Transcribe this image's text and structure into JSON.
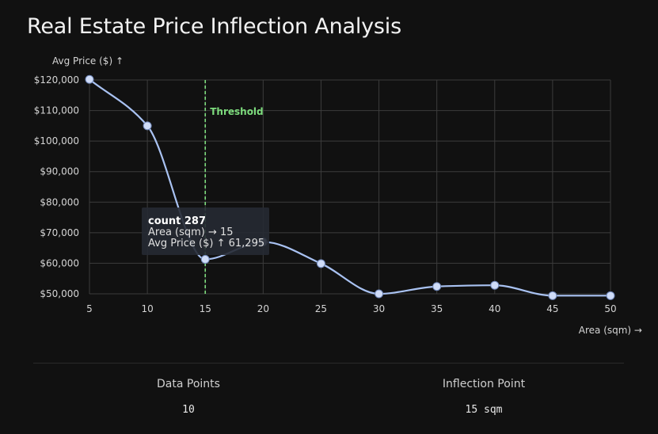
{
  "title": "Real Estate Price Inflection Analysis",
  "chart_data": {
    "type": "line",
    "title": "Real Estate Price Inflection Analysis",
    "xlabel": "Area (sqm) →",
    "ylabel": "Avg Price ($) ↑",
    "x": [
      5,
      10,
      15,
      20,
      25,
      30,
      35,
      40,
      45,
      50
    ],
    "xticks": [
      "5",
      "10",
      "15",
      "20",
      "25",
      "30",
      "35",
      "40",
      "45",
      "50"
    ],
    "yticks": [
      "$50,000",
      "$60,000",
      "$70,000",
      "$80,000",
      "$90,000",
      "$100,000",
      "$110,000",
      "$120,000"
    ],
    "ytick_values": [
      50000,
      60000,
      70000,
      80000,
      90000,
      100000,
      110000,
      120000
    ],
    "series": [
      {
        "values": [
          120200,
          105000,
          61295,
          67000,
          59900,
          50000,
          52400,
          52800,
          49400,
          49400
        ]
      }
    ],
    "xlim": [
      5,
      50
    ],
    "ylim": [
      50000,
      120000
    ],
    "grid": true,
    "line_color": "#a9c2f2",
    "marker_fill": "#cfdcf8",
    "threshold": {
      "x": 15,
      "label": "Threshold",
      "color": "#7ddc7d"
    },
    "tooltip": {
      "title": "count 287",
      "line1": "Area (sqm) → 15",
      "line2": "Avg Price ($) ↑ 61,295"
    }
  },
  "stats": {
    "data_points_label": "Data Points",
    "data_points_value": "10",
    "inflection_label": "Inflection Point",
    "inflection_value": "15 sqm"
  }
}
